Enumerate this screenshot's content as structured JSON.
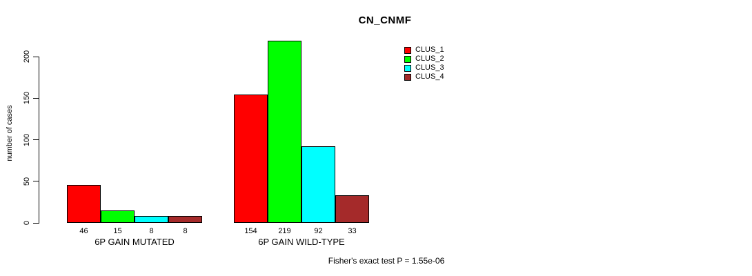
{
  "chart_data": {
    "type": "bar",
    "title": "CN_CNMF",
    "ylabel": "number of cases",
    "xlabel": "",
    "ylim": [
      0,
      200
    ],
    "yticks": [
      0,
      50,
      100,
      150,
      200
    ],
    "grid": false,
    "legend_position": "top-right-inside",
    "categories": [
      "6P GAIN MUTATED",
      "6P GAIN WILD-TYPE"
    ],
    "series": [
      {
        "name": "CLUS_1",
        "color": "#ff0000",
        "values": [
          46,
          154
        ]
      },
      {
        "name": "CLUS_2",
        "color": "#00ff00",
        "values": [
          15,
          219
        ]
      },
      {
        "name": "CLUS_3",
        "color": "#00ffff",
        "values": [
          8,
          92
        ]
      },
      {
        "name": "CLUS_4",
        "color": "#a52a2a",
        "values": [
          8,
          33
        ]
      }
    ],
    "show_value_labels": true,
    "annotation": "Fisher's exact test P = 1.55e-06",
    "colors": {
      "background": "#ffffff",
      "axis": "#000000",
      "text": "#000000"
    }
  }
}
